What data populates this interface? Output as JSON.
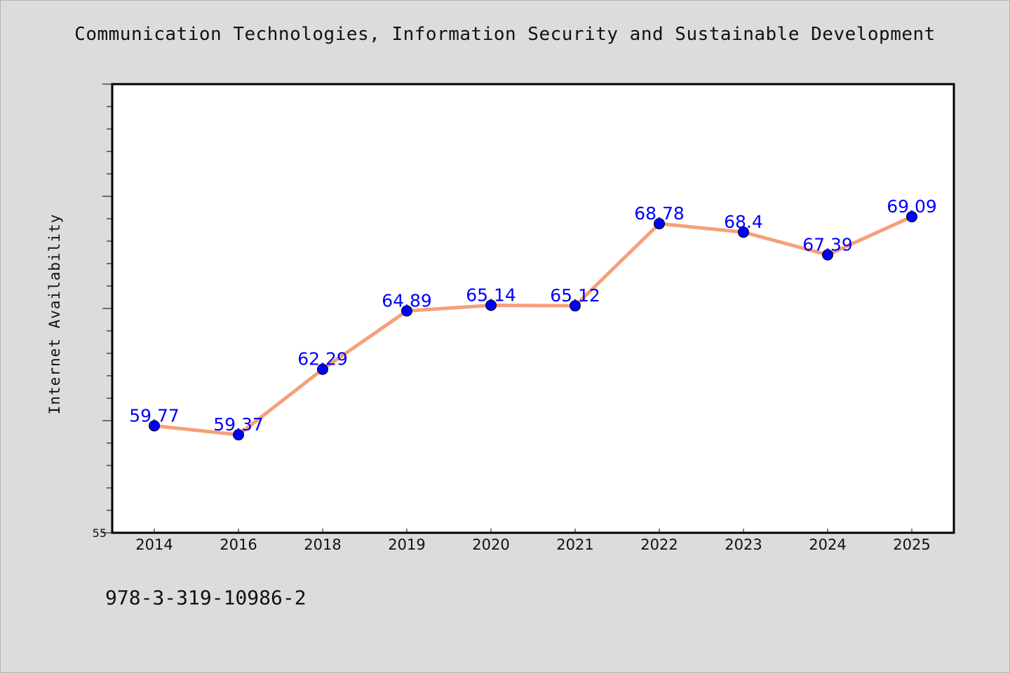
{
  "page": {
    "title": "Communication Technologies, Information Security and Sustainable Development",
    "footer_code": "978-3-319-10986-2"
  },
  "chart_data": {
    "type": "line",
    "title": "Communication Technologies, Information Security and Sustainable Development",
    "xlabel": "",
    "ylabel": "Internet Availability",
    "categories": [
      "2014",
      "2016",
      "2018",
      "2019",
      "2020",
      "2021",
      "2022",
      "2023",
      "2024",
      "2025"
    ],
    "series": [
      {
        "values": [
          59.77,
          59.37,
          62.29,
          64.89,
          65.14,
          65.12,
          68.78,
          68.4,
          67.39,
          69.09
        ],
        "labels": [
          "59.77",
          "59.37",
          "62.29",
          "64.89",
          "65.14",
          "65.12",
          "68.78",
          "68.4",
          "67.39",
          "69.09"
        ],
        "line_color": "#f5a07a",
        "marker_color": "#0000ff"
      }
    ],
    "y_tick_labels": [
      "55"
    ],
    "ylim": [
      55,
      75
    ],
    "grid": false,
    "legend": "none",
    "plot_background": "#ffffff",
    "page_background": "#dcdcdc"
  }
}
